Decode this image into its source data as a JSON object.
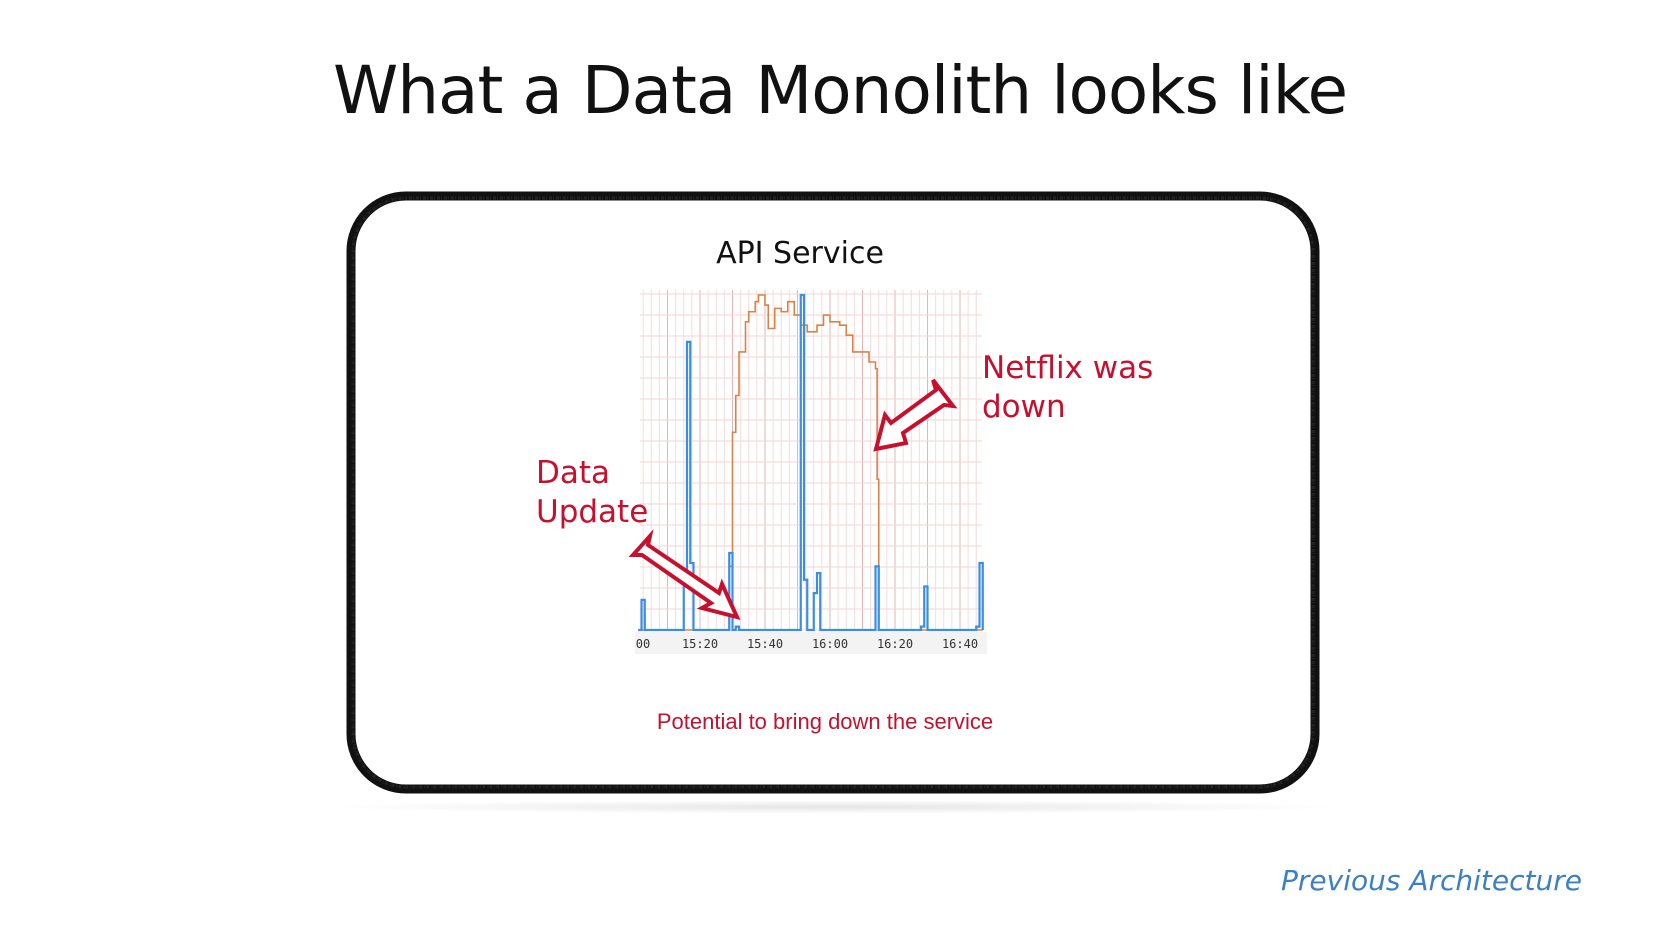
{
  "slide": {
    "title": "What a Data Monolith looks like",
    "panel_title": "API Service",
    "annotation_netflix": [
      "Netflix was",
      "down"
    ],
    "annotation_data_update": [
      "Data",
      "Update"
    ],
    "caption": "Potential to bring down the service",
    "footer": "Previous Architecture"
  },
  "colors": {
    "annotation": "#c8102e",
    "footer": "#3b7fc4",
    "series_orange": "#d9824a",
    "series_blue": "#3a8ee6",
    "grid": "#f2c9c9"
  },
  "chart_data": {
    "type": "line",
    "step": true,
    "title": "API Service",
    "xlabel": "",
    "ylabel": "",
    "x_ticks": [
      "00",
      "15:20",
      "15:40",
      "16:00",
      "16:20",
      "16:40"
    ],
    "xlim": [
      "15:01",
      "16:47"
    ],
    "ylim": [
      0,
      100
    ],
    "y_ticks_visible": false,
    "grid": true,
    "series": [
      {
        "color": "orange",
        "points": [
          [
            "15:01",
            0
          ],
          [
            "15:28",
            0
          ],
          [
            "15:29",
            19
          ],
          [
            "15:30",
            59
          ],
          [
            "15:31",
            70
          ],
          [
            "15:32",
            83
          ],
          [
            "15:34",
            92
          ],
          [
            "15:35",
            95
          ],
          [
            "15:37",
            98
          ],
          [
            "15:38",
            100
          ],
          [
            "15:40",
            97
          ],
          [
            "15:41",
            90
          ],
          [
            "15:43",
            96
          ],
          [
            "15:45",
            95
          ],
          [
            "15:47",
            98
          ],
          [
            "15:49",
            94
          ],
          [
            "15:51",
            91
          ],
          [
            "15:53",
            89
          ],
          [
            "15:56",
            91
          ],
          [
            "15:58",
            94
          ],
          [
            "16:00",
            92
          ],
          [
            "16:03",
            91
          ],
          [
            "16:05",
            88
          ],
          [
            "16:07",
            83
          ],
          [
            "16:10",
            83
          ],
          [
            "16:12",
            80
          ],
          [
            "16:14",
            78
          ],
          [
            "16:14:30",
            45
          ],
          [
            "16:15",
            0
          ],
          [
            "16:47",
            0
          ]
        ]
      },
      {
        "color": "blue",
        "points": [
          [
            "15:01",
            0
          ],
          [
            "15:02",
            9
          ],
          [
            "15:03",
            0
          ],
          [
            "15:15",
            17
          ],
          [
            "15:16",
            86
          ],
          [
            "15:17",
            20
          ],
          [
            "15:18",
            0
          ],
          [
            "15:29",
            23
          ],
          [
            "15:30",
            0
          ],
          [
            "15:31",
            1
          ],
          [
            "15:32",
            0
          ],
          [
            "15:51",
            100
          ],
          [
            "15:52",
            15
          ],
          [
            "15:53",
            0
          ],
          [
            "15:55",
            11
          ],
          [
            "15:56",
            17
          ],
          [
            "15:57",
            0
          ],
          [
            "16:14",
            19
          ],
          [
            "16:15",
            0
          ],
          [
            "16:28",
            1
          ],
          [
            "16:29",
            13
          ],
          [
            "16:30",
            0
          ],
          [
            "16:45",
            1
          ],
          [
            "16:46",
            20
          ],
          [
            "16:47",
            0
          ]
        ]
      }
    ]
  }
}
